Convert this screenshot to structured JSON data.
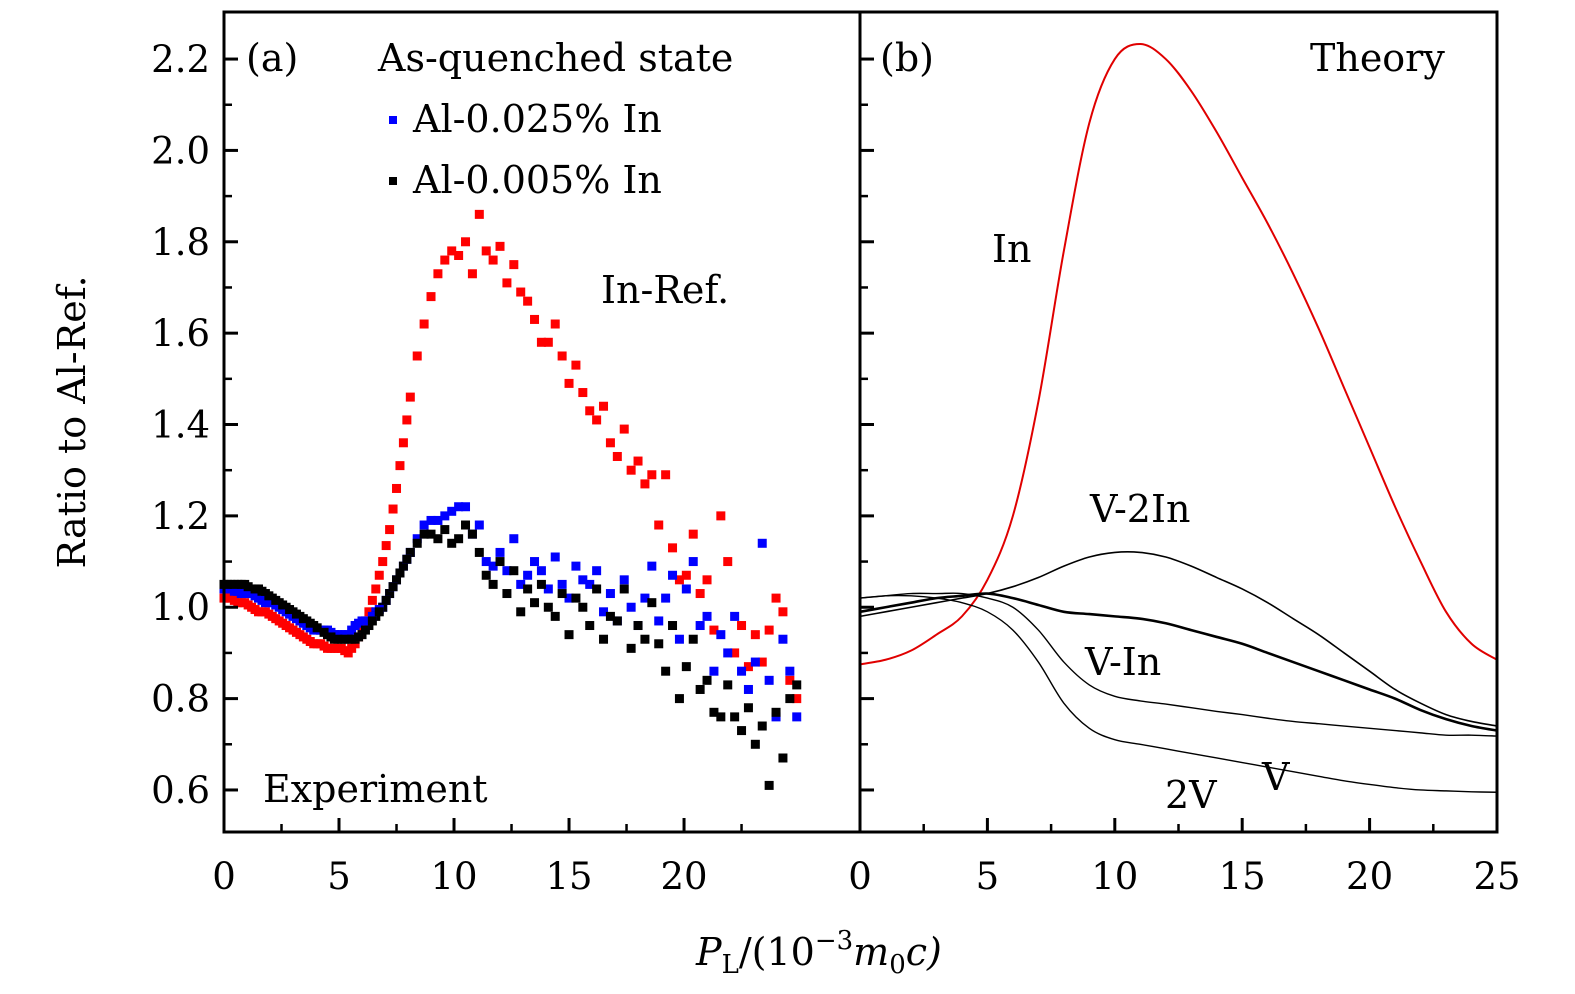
{
  "chart_data": [
    {
      "panel": "(a)",
      "type": "scatter",
      "title": "As-quenched state",
      "annotations": [
        "(a)",
        "As-quenched state",
        "In-Ref.",
        "Experiment"
      ],
      "xlabel": "P_L/(10^-3 m_0 c)",
      "ylabel": "Ratio to Al-Ref.",
      "xlim": [
        0,
        27.65
      ],
      "ylim": [
        0.508,
        2.303
      ],
      "xticks": [
        0,
        5,
        10,
        15,
        20
      ],
      "xtick_labels": [
        "0",
        "5",
        "10",
        "15",
        "20"
      ],
      "yticks": [
        0.6,
        0.8,
        1.0,
        1.2,
        1.4,
        1.6,
        1.8,
        2.0,
        2.2
      ],
      "ytick_labels": [
        "0.6",
        "0.8",
        "1.0",
        "1.2",
        "1.4",
        "1.6",
        "1.8",
        "2.0",
        "2.2"
      ],
      "grid": false,
      "legend": {
        "placement": "top-center",
        "entries": [
          {
            "label": "Al-0.025% In",
            "color": "#0000ff"
          },
          {
            "label": "Al-0.005% In",
            "color": "#000000"
          }
        ]
      },
      "series": [
        {
          "name": "In-Ref.",
          "color": "#ff0000",
          "x": [
            0.0,
            0.3,
            0.6,
            0.9,
            1.2,
            1.5,
            1.8,
            2.1,
            2.4,
            2.7,
            3.0,
            3.3,
            3.6,
            3.9,
            4.2,
            4.5,
            4.8,
            5.1,
            5.4,
            5.7,
            6.0,
            6.3,
            6.6,
            6.9,
            7.2,
            7.5,
            7.8,
            8.1,
            8.4,
            8.7,
            9.0,
            9.3,
            9.6,
            9.9,
            10.2,
            10.5,
            10.8,
            11.1,
            11.4,
            11.7,
            12.0,
            12.3,
            12.6,
            12.9,
            13.2,
            13.5,
            13.8,
            14.1,
            14.4,
            14.7,
            15.0,
            15.3,
            15.6,
            15.9,
            16.2,
            16.5,
            16.8,
            17.1,
            17.4,
            17.7,
            18.0,
            18.3,
            18.6,
            18.9,
            19.2,
            19.5,
            19.8,
            20.1,
            20.4,
            20.7,
            21.0,
            21.3,
            21.6,
            21.9,
            22.2,
            22.5,
            22.8,
            23.1,
            23.4,
            23.7,
            24.0,
            24.3,
            24.6,
            24.9
          ],
          "y": [
            1.02,
            1.02,
            1.01,
            1.01,
            1.0,
            0.99,
            0.99,
            0.98,
            0.97,
            0.96,
            0.95,
            0.94,
            0.93,
            0.92,
            0.92,
            0.91,
            0.91,
            0.91,
            0.9,
            0.92,
            0.95,
            0.99,
            1.04,
            1.1,
            1.17,
            1.26,
            1.36,
            1.46,
            1.55,
            1.62,
            1.68,
            1.73,
            1.76,
            1.78,
            1.77,
            1.8,
            1.73,
            1.86,
            1.78,
            1.76,
            1.79,
            1.71,
            1.75,
            1.69,
            1.67,
            1.63,
            1.58,
            1.58,
            1.62,
            1.55,
            1.49,
            1.53,
            1.47,
            1.43,
            1.41,
            1.44,
            1.36,
            1.33,
            1.39,
            1.3,
            1.32,
            1.27,
            1.29,
            1.18,
            1.29,
            1.13,
            1.06,
            1.07,
            1.16,
            1.03,
            1.06,
            0.95,
            1.2,
            1.1,
            0.9,
            0.96,
            0.87,
            0.94,
            0.88,
            0.95,
            1.02,
            0.99,
            0.84,
            0.8
          ]
        },
        {
          "name": "Al-0.025% In",
          "color": "#0000ff",
          "x": [
            0.0,
            0.3,
            0.6,
            0.9,
            1.2,
            1.5,
            1.8,
            2.1,
            2.4,
            2.7,
            3.0,
            3.3,
            3.6,
            3.9,
            4.2,
            4.5,
            4.8,
            5.1,
            5.4,
            5.7,
            6.0,
            6.3,
            6.6,
            6.9,
            7.2,
            7.5,
            7.8,
            8.1,
            8.4,
            8.7,
            9.0,
            9.3,
            9.6,
            9.9,
            10.2,
            10.5,
            10.8,
            11.1,
            11.4,
            11.7,
            12.0,
            12.3,
            12.6,
            12.9,
            13.2,
            13.5,
            13.8,
            14.1,
            14.4,
            14.7,
            15.0,
            15.3,
            15.6,
            15.9,
            16.2,
            16.5,
            16.8,
            17.1,
            17.4,
            17.7,
            18.0,
            18.3,
            18.6,
            18.9,
            19.2,
            19.5,
            19.8,
            20.1,
            20.4,
            20.7,
            21.0,
            21.3,
            21.6,
            21.9,
            22.2,
            22.5,
            22.8,
            23.1,
            23.4,
            23.7,
            24.0,
            24.3,
            24.6,
            24.9
          ],
          "y": [
            1.04,
            1.04,
            1.03,
            1.03,
            1.03,
            1.02,
            1.01,
            1.01,
            1.0,
            0.99,
            0.98,
            0.97,
            0.96,
            0.95,
            0.95,
            0.95,
            0.94,
            0.94,
            0.94,
            0.96,
            0.97,
            0.97,
            0.99,
            1.0,
            1.03,
            1.06,
            1.09,
            1.12,
            1.15,
            1.18,
            1.19,
            1.19,
            1.2,
            1.21,
            1.22,
            1.22,
            1.16,
            1.18,
            1.1,
            1.09,
            1.12,
            1.08,
            1.15,
            1.05,
            1.07,
            1.1,
            1.08,
            1.04,
            1.11,
            1.05,
            1.02,
            1.09,
            1.06,
            1.05,
            1.08,
            0.99,
            1.03,
            0.97,
            1.06,
            1.0,
            0.96,
            1.02,
            1.09,
            0.97,
            1.02,
            1.07,
            0.93,
            1.04,
            1.1,
            0.96,
            0.98,
            0.86,
            0.94,
            0.9,
            0.98,
            0.86,
            0.82,
            0.88,
            1.14,
            0.84,
            0.76,
            0.93,
            0.86,
            0.76
          ]
        },
        {
          "name": "Al-0.005% In",
          "color": "#000000",
          "x": [
            0.0,
            0.3,
            0.6,
            0.9,
            1.2,
            1.5,
            1.8,
            2.1,
            2.4,
            2.7,
            3.0,
            3.3,
            3.6,
            3.9,
            4.2,
            4.5,
            4.8,
            5.1,
            5.4,
            5.7,
            6.0,
            6.3,
            6.6,
            6.9,
            7.2,
            7.5,
            7.8,
            8.1,
            8.4,
            8.7,
            9.0,
            9.3,
            9.6,
            9.9,
            10.2,
            10.5,
            10.8,
            11.1,
            11.4,
            11.7,
            12.0,
            12.3,
            12.6,
            12.9,
            13.2,
            13.5,
            13.8,
            14.1,
            14.4,
            14.7,
            15.0,
            15.3,
            15.6,
            15.9,
            16.2,
            16.5,
            16.8,
            17.1,
            17.4,
            17.7,
            18.0,
            18.3,
            18.6,
            18.9,
            19.2,
            19.5,
            19.8,
            20.1,
            20.4,
            20.7,
            21.0,
            21.3,
            21.6,
            21.9,
            22.2,
            22.5,
            22.8,
            23.1,
            23.4,
            23.7,
            24.0,
            24.3,
            24.6,
            24.9
          ],
          "y": [
            1.05,
            1.05,
            1.05,
            1.05,
            1.04,
            1.04,
            1.03,
            1.02,
            1.01,
            1.0,
            0.99,
            0.98,
            0.97,
            0.96,
            0.95,
            0.94,
            0.93,
            0.93,
            0.93,
            0.93,
            0.94,
            0.96,
            0.98,
            1.0,
            1.03,
            1.06,
            1.09,
            1.12,
            1.14,
            1.16,
            1.16,
            1.15,
            1.17,
            1.14,
            1.15,
            1.18,
            1.16,
            1.12,
            1.07,
            1.05,
            1.1,
            1.03,
            1.08,
            0.99,
            1.04,
            1.01,
            1.05,
            1.0,
            0.98,
            1.03,
            0.94,
            1.02,
            1.0,
            0.96,
            1.04,
            0.93,
            0.98,
            0.97,
            1.04,
            0.91,
            0.96,
            0.93,
            1.01,
            0.92,
            0.86,
            0.96,
            0.8,
            0.87,
            0.93,
            0.82,
            0.84,
            0.77,
            0.76,
            0.83,
            0.76,
            0.73,
            0.78,
            0.7,
            0.74,
            0.61,
            0.77,
            0.67,
            0.8,
            0.83
          ]
        }
      ]
    },
    {
      "panel": "(b)",
      "type": "line",
      "title": "Theory",
      "annotations": [
        "(b)",
        "Theory",
        "In",
        "V-2In",
        "V-In",
        "V",
        "2V"
      ],
      "xlabel": "P_L/(10^-3 m_0 c)",
      "ylabel": "Ratio to Al-Ref.",
      "xlim": [
        0,
        25
      ],
      "ylim": [
        0.508,
        2.303
      ],
      "xticks": [
        0,
        5,
        10,
        15,
        20,
        25
      ],
      "xtick_labels": [
        "0",
        "5",
        "10",
        "15",
        "20",
        "25"
      ],
      "yticks": [
        0.6,
        0.8,
        1.0,
        1.2,
        1.4,
        1.6,
        1.8,
        2.0,
        2.2
      ],
      "grid": false,
      "x": [
        0,
        1,
        2,
        3,
        4,
        5,
        6,
        7,
        8,
        9,
        10,
        11,
        12,
        13,
        14,
        15,
        16,
        17,
        18,
        19,
        20,
        21,
        22,
        23,
        24,
        25
      ],
      "series": [
        {
          "name": "In",
          "color": "#e00000",
          "y": [
            0.875,
            0.885,
            0.905,
            0.94,
            0.98,
            1.06,
            1.2,
            1.45,
            1.78,
            2.06,
            2.2,
            2.233,
            2.2,
            2.13,
            2.04,
            1.94,
            1.84,
            1.73,
            1.61,
            1.48,
            1.35,
            1.22,
            1.1,
            0.99,
            0.92,
            0.885
          ]
        },
        {
          "name": "V-2In",
          "color": "#000000",
          "y": [
            0.98,
            0.99,
            1.0,
            1.01,
            1.02,
            1.03,
            1.045,
            1.065,
            1.09,
            1.11,
            1.12,
            1.12,
            1.11,
            1.09,
            1.065,
            1.04,
            1.01,
            0.975,
            0.94,
            0.9,
            0.86,
            0.82,
            0.79,
            0.765,
            0.75,
            0.74
          ]
        },
        {
          "name": "V-In",
          "color": "#000000",
          "y": [
            0.99,
            1.0,
            1.01,
            1.02,
            1.025,
            1.03,
            1.02,
            1.005,
            0.99,
            0.985,
            0.98,
            0.975,
            0.965,
            0.95,
            0.935,
            0.92,
            0.9,
            0.88,
            0.86,
            0.84,
            0.82,
            0.8,
            0.775,
            0.755,
            0.74,
            0.73
          ]
        },
        {
          "name": "V",
          "color": "#000000",
          "y": [
            1.02,
            1.025,
            1.03,
            1.03,
            1.03,
            1.02,
            1.0,
            0.95,
            0.88,
            0.83,
            0.805,
            0.795,
            0.788,
            0.78,
            0.772,
            0.765,
            0.757,
            0.75,
            0.745,
            0.74,
            0.735,
            0.73,
            0.725,
            0.72,
            0.72,
            0.718
          ]
        },
        {
          "name": "2V",
          "color": "#000000",
          "y": [
            1.02,
            1.025,
            1.025,
            1.02,
            1.01,
            0.99,
            0.95,
            0.88,
            0.79,
            0.735,
            0.71,
            0.7,
            0.69,
            0.68,
            0.67,
            0.66,
            0.65,
            0.64,
            0.63,
            0.62,
            0.612,
            0.605,
            0.6,
            0.598,
            0.596,
            0.595
          ]
        }
      ]
    }
  ],
  "labels": {
    "panel_a": "(a)",
    "panel_b": "(b)",
    "as_quenched": "As-quenched state",
    "legend_blue": "Al-0.025% In",
    "legend_black": "Al-0.005% In",
    "in_ref": "In-Ref.",
    "experiment": "Experiment",
    "theory": "Theory",
    "curve_in": "In",
    "curve_v2in": "V-2In",
    "curve_vin": "V-In",
    "curve_v": "V",
    "curve_2v": "2V",
    "ylabel": "Ratio to Al-Ref.",
    "xlabel_P": "P",
    "xlabel_sub": "L",
    "xlabel_mid": "/(10",
    "xlabel_sup": "−3",
    "xlabel_m": "m",
    "xlabel_msub": "0",
    "xlabel_end": "c)"
  }
}
